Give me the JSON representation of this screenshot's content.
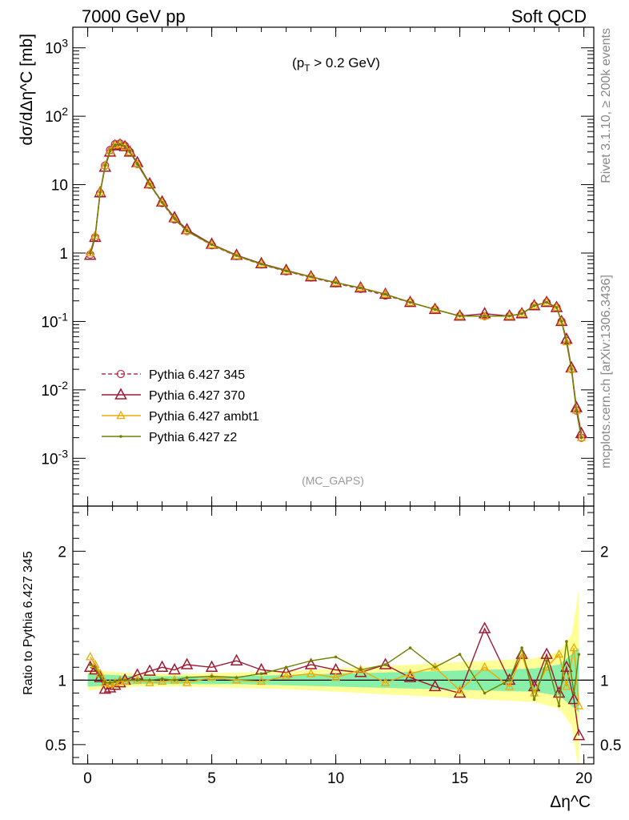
{
  "header": {
    "left": "7000 GeV pp",
    "right": "Soft QCD"
  },
  "side_labels": {
    "rivet": "Rivet 3.1.10, ≥ 200k events",
    "mcplots": "mcplots.cern.ch [arXiv:1306.3436]"
  },
  "chart_data": [
    {
      "type": "line",
      "panel": "main",
      "title": "",
      "annotation_cut": "(p_T > 0.2 GeV)",
      "analysis_tag": "(MC_GAPS)",
      "ylabel": "dσ/dΔη^C [mb]",
      "xlabel": "Δη^C",
      "xlim": [
        -0.6,
        20.4
      ],
      "ylim": [
        0.0002,
        2000
      ],
      "yscale": "log",
      "x_ticks": [
        "0",
        "5",
        "10",
        "15",
        "20"
      ],
      "y_ticks": [
        "10^-3",
        "10^-2",
        "10^-1",
        "1",
        "10",
        "10^2",
        "10^3"
      ],
      "legend_position": "bottom-left",
      "legend": [
        "Pythia 6.427 345",
        "Pythia 6.427 370",
        "Pythia 6.427 ambt1",
        "Pythia 6.427 z2"
      ],
      "x": [
        0.1,
        0.3,
        0.5,
        0.7,
        0.9,
        1.1,
        1.3,
        1.5,
        1.7,
        2.0,
        2.5,
        3.0,
        3.5,
        4.0,
        5.0,
        6.0,
        7.0,
        8.0,
        9.0,
        10.0,
        11.0,
        12.0,
        13.0,
        14.0,
        15.0,
        16.0,
        17.0,
        17.5,
        18.0,
        18.5,
        18.9,
        19.1,
        19.3,
        19.5,
        19.7,
        19.9
      ],
      "series": [
        {
          "name": "Pythia 6.427 345",
          "color": "#c03050",
          "values": [
            0.95,
            1.7,
            7.5,
            19,
            32,
            39,
            40,
            37,
            30,
            20,
            10,
            5.4,
            3.1,
            2.1,
            1.3,
            0.9,
            0.68,
            0.54,
            0.44,
            0.36,
            0.3,
            0.24,
            0.19,
            0.15,
            0.12,
            0.12,
            0.12,
            0.13,
            0.17,
            0.19,
            0.16,
            0.1,
            0.052,
            0.02,
            0.005,
            0.002
          ]
        },
        {
          "name": "Pythia 6.427 370",
          "color": "#a01830",
          "values": [
            0.93,
            1.7,
            7.6,
            18,
            30,
            37,
            38,
            36,
            30,
            21,
            10.3,
            5.6,
            3.3,
            2.2,
            1.35,
            0.93,
            0.7,
            0.56,
            0.45,
            0.37,
            0.31,
            0.25,
            0.19,
            0.15,
            0.12,
            0.13,
            0.12,
            0.13,
            0.17,
            0.19,
            0.16,
            0.1,
            0.055,
            0.021,
            0.0055,
            0.0023
          ]
        },
        {
          "name": "Pythia 6.427 ambt1",
          "color": "#f0a800",
          "values": [
            1.0,
            1.8,
            7.8,
            19,
            31,
            38,
            39,
            36,
            30,
            20,
            10.1,
            5.5,
            3.2,
            2.1,
            1.32,
            0.91,
            0.69,
            0.55,
            0.45,
            0.37,
            0.31,
            0.25,
            0.19,
            0.15,
            0.12,
            0.12,
            0.12,
            0.13,
            0.17,
            0.19,
            0.16,
            0.1,
            0.05,
            0.02,
            0.005,
            0.002
          ]
        },
        {
          "name": "Pythia 6.427 z2",
          "color": "#708000",
          "values": [
            1.0,
            1.8,
            7.7,
            19,
            31,
            38,
            39,
            36,
            30,
            20,
            10.1,
            5.5,
            3.2,
            2.1,
            1.33,
            0.92,
            0.69,
            0.55,
            0.45,
            0.37,
            0.31,
            0.25,
            0.19,
            0.15,
            0.12,
            0.12,
            0.12,
            0.13,
            0.17,
            0.19,
            0.16,
            0.1,
            0.05,
            0.02,
            0.005,
            0.002
          ]
        }
      ]
    },
    {
      "type": "line",
      "panel": "ratio",
      "title": "",
      "ylabel": "Ratio to Pythia 6.427 345",
      "xlabel": "Δη^C",
      "xlim": [
        -0.6,
        20.4
      ],
      "ylim": [
        0.35,
        2.35
      ],
      "x_ticks": [
        "0",
        "5",
        "10",
        "15",
        "20"
      ],
      "y_ticks": [
        "0.5",
        "1",
        "2"
      ],
      "reference_line": 1,
      "x": [
        0.1,
        0.3,
        0.5,
        0.7,
        0.9,
        1.1,
        1.3,
        1.5,
        2.0,
        2.5,
        3.0,
        3.5,
        4.0,
        5.0,
        6.0,
        7.0,
        8.0,
        9.0,
        10.0,
        11.0,
        12.0,
        13.0,
        14.0,
        15.0,
        16.0,
        17.0,
        17.5,
        18.0,
        18.5,
        19.0,
        19.3,
        19.6,
        19.8
      ],
      "band": {
        "x": [
          0,
          2,
          4,
          6,
          8,
          10,
          12,
          14,
          16,
          18,
          19,
          19.5,
          19.8
        ],
        "green_half_width": [
          0.05,
          0.03,
          0.03,
          0.03,
          0.04,
          0.05,
          0.06,
          0.07,
          0.08,
          0.09,
          0.12,
          0.2,
          0.25
        ],
        "yellow_half_width": [
          0.08,
          0.05,
          0.05,
          0.06,
          0.07,
          0.09,
          0.11,
          0.13,
          0.15,
          0.17,
          0.22,
          0.35,
          0.7
        ]
      },
      "series": [
        {
          "name": "Pythia 6.427 370",
          "color": "#a01830",
          "values": [
            1.1,
            1.08,
            1.02,
            0.93,
            0.94,
            0.96,
            0.98,
            1.0,
            1.04,
            1.07,
            1.1,
            1.08,
            1.12,
            1.1,
            1.15,
            1.08,
            1.06,
            1.12,
            1.08,
            1.06,
            1.12,
            1.02,
            0.95,
            0.9,
            1.4,
            1.0,
            1.2,
            0.95,
            1.2,
            0.9,
            1.1,
            0.85,
            0.57
          ]
        },
        {
          "name": "Pythia 6.427 ambt1",
          "color": "#f0a800",
          "values": [
            1.18,
            1.12,
            1.05,
            0.98,
            0.97,
            0.98,
            0.99,
            0.99,
            1.0,
            0.98,
            0.99,
            1.0,
            0.98,
            1.02,
            1.0,
            0.99,
            1.03,
            1.05,
            1.02,
            1.08,
            0.98,
            1.05,
            1.1,
            0.92,
            1.1,
            0.95,
            1.2,
            0.9,
            1.1,
            1.2,
            0.95,
            1.25,
            0.8
          ]
        },
        {
          "name": "Pythia 6.427 z2",
          "color": "#708000",
          "values": [
            1.12,
            1.1,
            1.03,
            0.98,
            0.98,
            0.99,
            1.0,
            1.0,
            1.0,
            1.0,
            1.01,
            1.0,
            1.02,
            1.03,
            1.02,
            1.05,
            1.1,
            1.15,
            1.18,
            1.08,
            1.12,
            1.25,
            1.1,
            1.2,
            0.9,
            1.0,
            1.25,
            0.85,
            1.15,
            0.8,
            1.3,
            0.9,
            1.2
          ]
        }
      ]
    }
  ]
}
